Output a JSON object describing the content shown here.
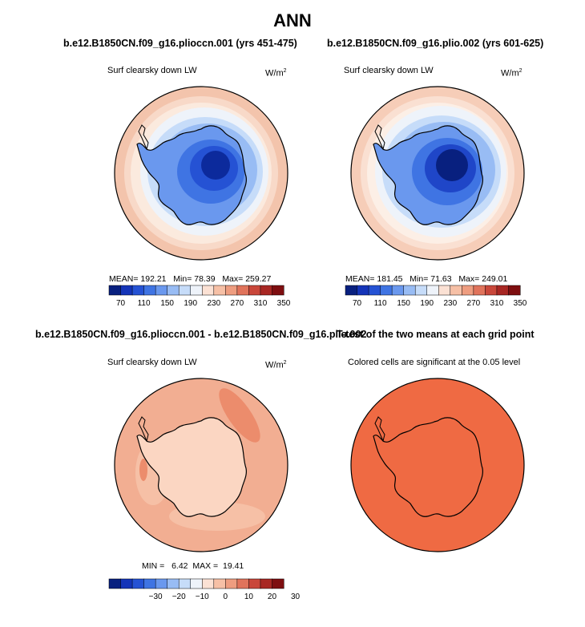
{
  "figure": {
    "title": "ANN"
  },
  "panels": {
    "p1": {
      "title": "b.e12.B1850CN.f09_g16.plioccn.001 (yrs 451-475)",
      "variable": "Surf clearsky down LW",
      "units_base": "W/m",
      "units_exp": "2",
      "mean_label": "MEAN=",
      "mean": "192.21",
      "min_label": "Min=",
      "min": "78.39",
      "max_label": "Max=",
      "max": "259.27"
    },
    "p2": {
      "title": "b.e12.B1850CN.f09_g16.plio.002 (yrs 601-625)",
      "variable": "Surf clearsky down LW",
      "units_base": "W/m",
      "units_exp": "2",
      "mean_label": "MEAN=",
      "mean": "181.45",
      "min_label": "Min=",
      "min": "71.63",
      "max_label": "Max=",
      "max": "249.01"
    },
    "p3": {
      "title": "b.e12.B1850CN.f09_g16.plioccn.001 - b.e12.B1850CN.f09_g16.plio.002",
      "variable": "Surf clearsky down LW",
      "units_base": "W/m",
      "units_exp": "2",
      "min_label": "MIN =",
      "min": "6.42",
      "max_label": "MAX =",
      "max": "19.41"
    },
    "p4": {
      "title": "T-test of the two means at each grid point",
      "variable": "Colored cells are significant at the 0.05 level"
    }
  },
  "colorbars": {
    "absolute": {
      "ticks": [
        "70",
        "110",
        "150",
        "190",
        "230",
        "270",
        "310",
        "350"
      ],
      "colors": [
        "#08207f",
        "#1434b8",
        "#2552d4",
        "#3f74e3",
        "#6a98ee",
        "#98bcf4",
        "#c6dcf9",
        "#eef3fa",
        "#fbe1d4",
        "#f6c0a6",
        "#ee9d80",
        "#e0735b",
        "#c9473a",
        "#a82723",
        "#7e0e10"
      ]
    },
    "difference": {
      "ticks": [
        "−30",
        "−20",
        "−10",
        "0",
        "10",
        "20",
        "30"
      ],
      "colors": [
        "#08207f",
        "#1434b8",
        "#2552d4",
        "#3f74e3",
        "#6a98ee",
        "#98bcf4",
        "#c6dcf9",
        "#eef3fa",
        "#fbe1d4",
        "#f6c0a6",
        "#ee9d80",
        "#e0735b",
        "#c9473a",
        "#a82723",
        "#7e0e10"
      ]
    }
  }
}
